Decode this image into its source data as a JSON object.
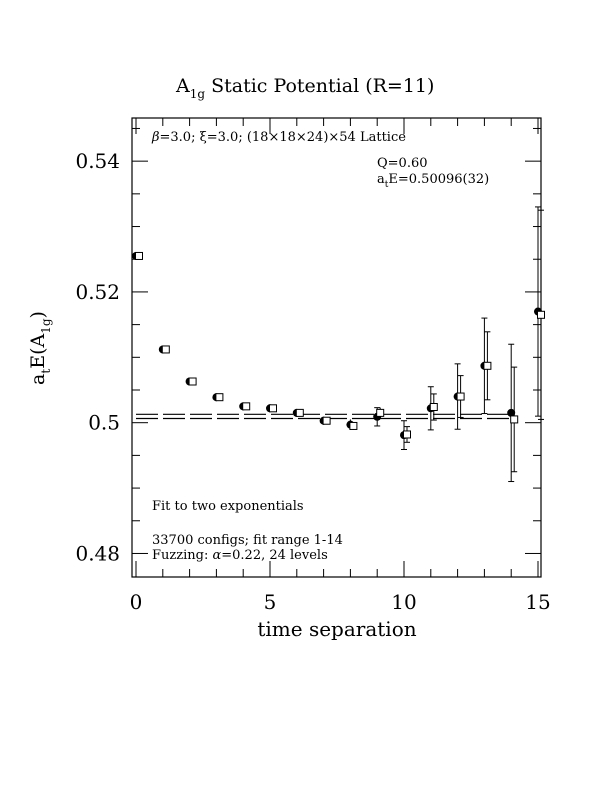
{
  "chart_data": {
    "type": "scatter",
    "title_main": "A",
    "title_sub": "1g",
    "title_rest": " Static Potential (R=11)",
    "xlabel": "time separation",
    "ylabel_main": "a",
    "ylabel_sub1": "t",
    "ylabel_mid": "E(A",
    "ylabel_sub2": "1g",
    "ylabel_end": ")",
    "xlim": [
      0,
      15
    ],
    "ylim": [
      0.4764,
      0.5466
    ],
    "xticks": [
      0,
      5,
      10,
      15
    ],
    "xtick_labels": [
      "0",
      "5",
      "10",
      "15"
    ],
    "yticks": [
      0.48,
      0.5,
      0.52,
      0.54
    ],
    "ytick_labels": [
      "0.48",
      "0.5",
      "0.52",
      "0.54"
    ],
    "annotations": {
      "lattice_beta": "β",
      "lattice_rest": "=3.0; ξ=3.0; (18×18×24)×54 Lattice",
      "q_value": "Q=0.60",
      "energy_main": "a",
      "energy_sub": "t",
      "energy_rest": "E=0.50096(32)",
      "fit_desc": "Fit to two exponentials",
      "configs": "33700 configs; fit range 1-14",
      "fuzzing_a": "Fuzzing: ",
      "fuzzing_alpha": "α",
      "fuzzing_b": "=0.22, 24 levels"
    },
    "series": [
      {
        "marker": "filled-circle",
        "x": [
          0,
          1,
          2,
          3,
          4,
          5,
          6,
          7,
          8,
          9,
          10,
          11,
          12,
          13,
          14,
          15
        ],
        "y": [
          0.5255,
          0.5112,
          0.5063,
          0.5039,
          0.5025,
          0.5022,
          0.5015,
          0.5003,
          0.4997,
          0.5009,
          0.4981,
          0.5022,
          0.504,
          0.5087,
          0.5015,
          0.517
        ],
        "err": [
          0.0002,
          0.0002,
          0.0003,
          0.0004,
          0.0004,
          0.0004,
          0.0005,
          0.0006,
          0.0008,
          0.0014,
          0.0022,
          0.0033,
          0.005,
          0.0073,
          0.0105,
          0.016
        ]
      },
      {
        "marker": "open-square",
        "x": [
          0,
          1,
          2,
          3,
          4,
          5,
          6,
          7,
          8,
          9,
          10,
          11,
          12,
          13,
          14,
          15
        ],
        "y": [
          0.5255,
          0.5112,
          0.5063,
          0.5039,
          0.5025,
          0.5022,
          0.5015,
          0.5003,
          0.4995,
          0.5015,
          0.4982,
          0.5024,
          0.504,
          0.5087,
          0.5005,
          0.5165
        ],
        "err": [
          0.0002,
          0.0002,
          0.0003,
          0.0003,
          0.0003,
          0.0004,
          0.0004,
          0.0005,
          0.0006,
          0.0008,
          0.0012,
          0.002,
          0.0032,
          0.0052,
          0.008,
          0.016
        ]
      }
    ],
    "fit": {
      "value": 0.50096,
      "error": 0.00032,
      "x_range": [
        0,
        14
      ]
    }
  }
}
